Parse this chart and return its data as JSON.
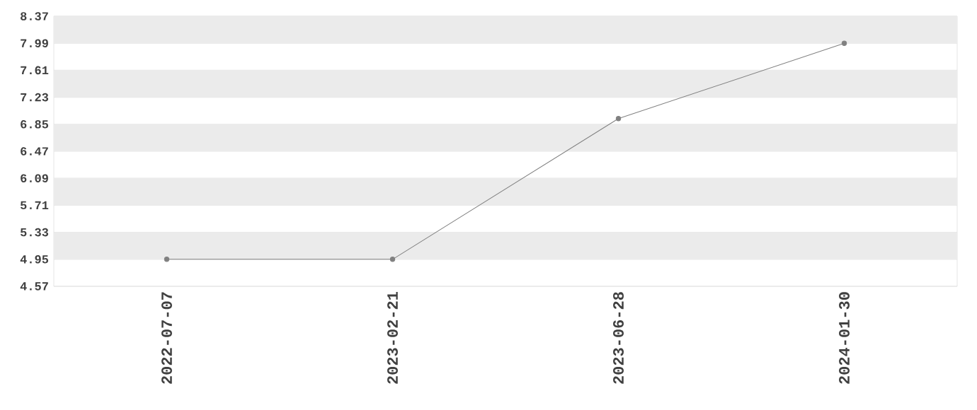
{
  "chart_data": {
    "type": "line",
    "categories": [
      "2022-07-07",
      "2023-02-21",
      "2023-06-28",
      "2024-01-30"
    ],
    "values": [
      4.95,
      4.95,
      6.93,
      7.99
    ],
    "color": "#808080",
    "ylim": [
      4.57,
      8.37
    ],
    "yticks": [
      4.57,
      4.95,
      5.33,
      5.71,
      6.09,
      6.47,
      6.85,
      7.23,
      7.61,
      7.99,
      8.37
    ],
    "grid": "y",
    "marker": "circle",
    "line_style": "solid"
  }
}
